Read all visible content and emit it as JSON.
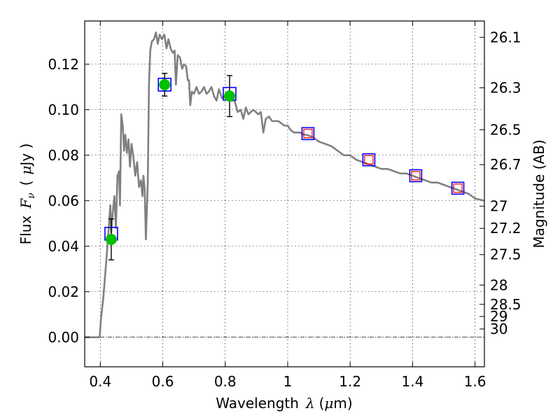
{
  "chart_data": {
    "type": "scatter",
    "title": "",
    "xlabel": "Wavelength",
    "xlabel_symbol": "λ",
    "xlabel_unit_prefix": "(",
    "xlabel_unit_mu": "μ",
    "xlabel_unit_suffix": "m)",
    "ylabel": "Flux",
    "ylabel_symbol": "F",
    "ylabel_subscript": "ν",
    "ylabel_unit_prefix": "(",
    "ylabel_unit_mu": "μ",
    "ylabel_unit_suffix": "Jy )",
    "y2label": "Magnitude (AB)",
    "xlim": [
      0.35,
      1.63
    ],
    "ylim": [
      -0.013,
      0.139
    ],
    "grid": true,
    "x_ticks": [
      0.4,
      0.6,
      0.8,
      1.0,
      1.2,
      1.4,
      1.6
    ],
    "x_tick_labels": [
      "0.4",
      "0.6",
      "0.8",
      "1",
      "1.2",
      "1.4",
      "1.6"
    ],
    "y_ticks": [
      0.0,
      0.02,
      0.04,
      0.06,
      0.08,
      0.1,
      0.12
    ],
    "y_tick_labels": [
      "0.00",
      "0.02",
      "0.04",
      "0.06",
      "0.08",
      "0.10",
      "0.12"
    ],
    "mag_ticks": [
      {
        "value": 26.1,
        "label": "26.1"
      },
      {
        "value": 26.3,
        "label": "26.3"
      },
      {
        "value": 26.5,
        "label": "26.5"
      },
      {
        "value": 26.7,
        "label": "26.7"
      },
      {
        "value": 27.0,
        "label": "27"
      },
      {
        "value": 27.2,
        "label": "27.2"
      },
      {
        "value": 27.5,
        "label": "27.5"
      },
      {
        "value": 28.0,
        "label": "28"
      },
      {
        "value": 28.5,
        "label": "28.5"
      },
      {
        "value": 29.0,
        "label": "29"
      },
      {
        "value": 30.0,
        "label": "30"
      }
    ],
    "model_sed": {
      "color": "#808080",
      "points": [
        [
          0.35,
          0.0
        ],
        [
          0.398,
          0.0
        ],
        [
          0.402,
          0.008
        ],
        [
          0.41,
          0.018
        ],
        [
          0.42,
          0.035
        ],
        [
          0.428,
          0.05
        ],
        [
          0.432,
          0.058
        ],
        [
          0.435,
          0.046
        ],
        [
          0.44,
          0.055
        ],
        [
          0.445,
          0.062
        ],
        [
          0.45,
          0.048
        ],
        [
          0.455,
          0.071
        ],
        [
          0.46,
          0.073
        ],
        [
          0.463,
          0.058
        ],
        [
          0.467,
          0.098
        ],
        [
          0.472,
          0.093
        ],
        [
          0.476,
          0.082
        ],
        [
          0.48,
          0.089
        ],
        [
          0.485,
          0.081
        ],
        [
          0.49,
          0.087
        ],
        [
          0.495,
          0.075
        ],
        [
          0.5,
          0.085
        ],
        [
          0.506,
          0.079
        ],
        [
          0.512,
          0.071
        ],
        [
          0.518,
          0.077
        ],
        [
          0.524,
          0.066
        ],
        [
          0.53,
          0.069
        ],
        [
          0.535,
          0.062
        ],
        [
          0.538,
          0.071
        ],
        [
          0.542,
          0.065
        ],
        [
          0.546,
          0.043
        ],
        [
          0.552,
          0.068
        ],
        [
          0.556,
          0.112
        ],
        [
          0.56,
          0.126
        ],
        [
          0.565,
          0.13
        ],
        [
          0.572,
          0.131
        ],
        [
          0.578,
          0.134
        ],
        [
          0.584,
          0.129
        ],
        [
          0.59,
          0.133
        ],
        [
          0.597,
          0.131
        ],
        [
          0.605,
          0.133
        ],
        [
          0.612,
          0.127
        ],
        [
          0.618,
          0.131
        ],
        [
          0.625,
          0.127
        ],
        [
          0.632,
          0.125
        ],
        [
          0.638,
          0.126
        ],
        [
          0.642,
          0.111
        ],
        [
          0.648,
          0.124
        ],
        [
          0.655,
          0.123
        ],
        [
          0.662,
          0.118
        ],
        [
          0.668,
          0.12
        ],
        [
          0.675,
          0.119
        ],
        [
          0.68,
          0.113
        ],
        [
          0.684,
          0.113
        ],
        [
          0.688,
          0.102
        ],
        [
          0.693,
          0.108
        ],
        [
          0.7,
          0.107
        ],
        [
          0.708,
          0.11
        ],
        [
          0.716,
          0.107
        ],
        [
          0.724,
          0.108
        ],
        [
          0.732,
          0.11
        ],
        [
          0.74,
          0.107
        ],
        [
          0.748,
          0.108
        ],
        [
          0.756,
          0.11
        ],
        [
          0.764,
          0.106
        ],
        [
          0.772,
          0.104
        ],
        [
          0.78,
          0.109
        ],
        [
          0.79,
          0.105
        ],
        [
          0.8,
          0.106
        ],
        [
          0.81,
          0.107
        ],
        [
          0.82,
          0.104
        ],
        [
          0.83,
          0.104
        ],
        [
          0.84,
          0.099
        ],
        [
          0.85,
          0.1
        ],
        [
          0.858,
          0.096
        ],
        [
          0.866,
          0.101
        ],
        [
          0.874,
          0.098
        ],
        [
          0.882,
          0.099
        ],
        [
          0.89,
          0.1
        ],
        [
          0.898,
          0.099
        ],
        [
          0.906,
          0.098
        ],
        [
          0.914,
          0.099
        ],
        [
          0.922,
          0.09
        ],
        [
          0.93,
          0.096
        ],
        [
          0.94,
          0.097
        ],
        [
          0.95,
          0.095
        ],
        [
          0.96,
          0.095
        ],
        [
          0.97,
          0.095
        ],
        [
          0.98,
          0.094
        ],
        [
          0.99,
          0.093
        ],
        [
          1.0,
          0.093
        ],
        [
          1.01,
          0.091
        ],
        [
          1.02,
          0.09
        ],
        [
          1.03,
          0.09
        ],
        [
          1.04,
          0.09
        ],
        [
          1.05,
          0.089
        ],
        [
          1.06,
          0.089
        ],
        [
          1.08,
          0.088
        ],
        [
          1.1,
          0.086
        ],
        [
          1.12,
          0.085
        ],
        [
          1.14,
          0.084
        ],
        [
          1.16,
          0.082
        ],
        [
          1.18,
          0.08
        ],
        [
          1.2,
          0.08
        ],
        [
          1.22,
          0.078
        ],
        [
          1.24,
          0.077
        ],
        [
          1.26,
          0.076
        ],
        [
          1.28,
          0.075
        ],
        [
          1.3,
          0.074
        ],
        [
          1.32,
          0.074
        ],
        [
          1.34,
          0.073
        ],
        [
          1.36,
          0.072
        ],
        [
          1.38,
          0.072
        ],
        [
          1.4,
          0.071
        ],
        [
          1.42,
          0.07
        ],
        [
          1.44,
          0.069
        ],
        [
          1.46,
          0.068
        ],
        [
          1.48,
          0.068
        ],
        [
          1.5,
          0.067
        ],
        [
          1.52,
          0.066
        ],
        [
          1.54,
          0.065
        ],
        [
          1.56,
          0.064
        ],
        [
          1.58,
          0.063
        ],
        [
          1.6,
          0.061
        ],
        [
          1.63,
          0.06
        ]
      ]
    },
    "model_photometry": {
      "color": "#0000ff",
      "points": [
        {
          "x": 0.435,
          "y": 0.0455
        },
        {
          "x": 0.606,
          "y": 0.111
        },
        {
          "x": 0.814,
          "y": 0.107
        }
      ]
    },
    "nir_predictions": {
      "outer_color": "#0000ff",
      "inner_color": "#ff0000",
      "points": [
        {
          "x": 1.065,
          "y": 0.0895
        },
        {
          "x": 1.26,
          "y": 0.078
        },
        {
          "x": 1.41,
          "y": 0.071
        },
        {
          "x": 1.545,
          "y": 0.0655
        }
      ]
    },
    "observed": {
      "color": "#00c000",
      "points": [
        {
          "x": 0.435,
          "y": 0.043,
          "err": 0.009
        },
        {
          "x": 0.606,
          "y": 0.111,
          "err": 0.005
        },
        {
          "x": 0.814,
          "y": 0.106,
          "err": 0.009
        }
      ]
    },
    "zero_line": 0.0
  }
}
